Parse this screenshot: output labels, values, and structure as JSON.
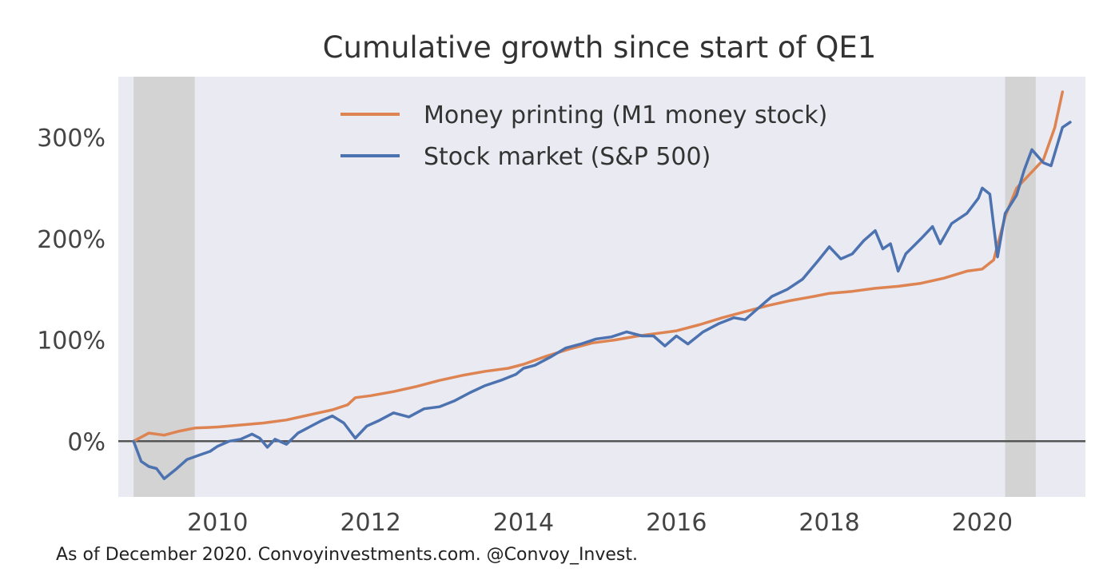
{
  "chart_data": {
    "type": "line",
    "title": "Cumulative growth since start of QE1",
    "xlabel": "",
    "ylabel": "",
    "xlim": [
      2008.7,
      2021.35
    ],
    "ylim": [
      -55,
      360
    ],
    "x_ticks": [
      2010,
      2012,
      2014,
      2016,
      2018,
      2020
    ],
    "x_tick_labels": [
      "2010",
      "2012",
      "2014",
      "2016",
      "2018",
      "2020"
    ],
    "y_ticks": [
      0,
      100,
      200,
      300
    ],
    "y_tick_labels": [
      "0%",
      "100%",
      "200%",
      "300%"
    ],
    "shaded_periods": [
      [
        2008.9,
        2009.7
      ],
      [
        2020.3,
        2020.7
      ]
    ],
    "zero_line": 0,
    "legend_position": "top-center",
    "series": [
      {
        "name": "Money printing (M1 money stock)",
        "color": "#DD8452",
        "points": [
          [
            2008.9,
            0
          ],
          [
            2009.0,
            4
          ],
          [
            2009.1,
            8
          ],
          [
            2009.3,
            6
          ],
          [
            2009.5,
            10
          ],
          [
            2009.7,
            13
          ],
          [
            2010.0,
            14
          ],
          [
            2010.3,
            16
          ],
          [
            2010.6,
            18
          ],
          [
            2010.9,
            21
          ],
          [
            2011.2,
            26
          ],
          [
            2011.5,
            31
          ],
          [
            2011.7,
            36
          ],
          [
            2011.8,
            43
          ],
          [
            2012.0,
            45
          ],
          [
            2012.3,
            49
          ],
          [
            2012.6,
            54
          ],
          [
            2012.9,
            60
          ],
          [
            2013.2,
            65
          ],
          [
            2013.5,
            69
          ],
          [
            2013.8,
            72
          ],
          [
            2014.0,
            76
          ],
          [
            2014.3,
            84
          ],
          [
            2014.6,
            91
          ],
          [
            2014.9,
            97
          ],
          [
            2015.2,
            100
          ],
          [
            2015.5,
            104
          ],
          [
            2015.8,
            107
          ],
          [
            2016.0,
            109
          ],
          [
            2016.3,
            115
          ],
          [
            2016.6,
            122
          ],
          [
            2016.9,
            128
          ],
          [
            2017.2,
            134
          ],
          [
            2017.5,
            139
          ],
          [
            2017.8,
            143
          ],
          [
            2018.0,
            146
          ],
          [
            2018.3,
            148
          ],
          [
            2018.6,
            151
          ],
          [
            2018.9,
            153
          ],
          [
            2019.2,
            156
          ],
          [
            2019.5,
            161
          ],
          [
            2019.8,
            168
          ],
          [
            2020.0,
            170
          ],
          [
            2020.15,
            179
          ],
          [
            2020.3,
            222
          ],
          [
            2020.45,
            250
          ],
          [
            2020.6,
            262
          ],
          [
            2020.8,
            278
          ],
          [
            2020.95,
            310
          ],
          [
            2021.05,
            345
          ]
        ]
      },
      {
        "name": "Stock market (S&P 500)",
        "color": "#4C72B0",
        "points": [
          [
            2008.9,
            0
          ],
          [
            2009.0,
            -20
          ],
          [
            2009.1,
            -25
          ],
          [
            2009.2,
            -27
          ],
          [
            2009.3,
            -37
          ],
          [
            2009.45,
            -28
          ],
          [
            2009.6,
            -18
          ],
          [
            2009.75,
            -14
          ],
          [
            2009.9,
            -10
          ],
          [
            2010.0,
            -5
          ],
          [
            2010.15,
            0
          ],
          [
            2010.3,
            2
          ],
          [
            2010.45,
            7
          ],
          [
            2010.55,
            3
          ],
          [
            2010.65,
            -6
          ],
          [
            2010.75,
            2
          ],
          [
            2010.9,
            -3
          ],
          [
            2011.05,
            8
          ],
          [
            2011.2,
            14
          ],
          [
            2011.35,
            20
          ],
          [
            2011.5,
            25
          ],
          [
            2011.65,
            18
          ],
          [
            2011.8,
            3
          ],
          [
            2011.95,
            15
          ],
          [
            2012.1,
            20
          ],
          [
            2012.3,
            28
          ],
          [
            2012.5,
            24
          ],
          [
            2012.7,
            32
          ],
          [
            2012.9,
            34
          ],
          [
            2013.1,
            40
          ],
          [
            2013.3,
            48
          ],
          [
            2013.5,
            55
          ],
          [
            2013.7,
            60
          ],
          [
            2013.9,
            66
          ],
          [
            2014.0,
            72
          ],
          [
            2014.15,
            75
          ],
          [
            2014.35,
            83
          ],
          [
            2014.55,
            92
          ],
          [
            2014.75,
            96
          ],
          [
            2014.95,
            101
          ],
          [
            2015.15,
            103
          ],
          [
            2015.35,
            108
          ],
          [
            2015.55,
            104
          ],
          [
            2015.7,
            104
          ],
          [
            2015.85,
            94
          ],
          [
            2016.0,
            104
          ],
          [
            2016.15,
            96
          ],
          [
            2016.35,
            108
          ],
          [
            2016.55,
            116
          ],
          [
            2016.75,
            122
          ],
          [
            2016.9,
            120
          ],
          [
            2017.05,
            130
          ],
          [
            2017.25,
            143
          ],
          [
            2017.45,
            150
          ],
          [
            2017.65,
            160
          ],
          [
            2017.85,
            178
          ],
          [
            2018.0,
            192
          ],
          [
            2018.15,
            180
          ],
          [
            2018.3,
            185
          ],
          [
            2018.45,
            198
          ],
          [
            2018.6,
            208
          ],
          [
            2018.7,
            190
          ],
          [
            2018.8,
            195
          ],
          [
            2018.9,
            168
          ],
          [
            2019.0,
            185
          ],
          [
            2019.2,
            200
          ],
          [
            2019.35,
            212
          ],
          [
            2019.45,
            195
          ],
          [
            2019.6,
            215
          ],
          [
            2019.8,
            225
          ],
          [
            2019.95,
            240
          ],
          [
            2020.0,
            250
          ],
          [
            2020.1,
            244
          ],
          [
            2020.2,
            182
          ],
          [
            2020.3,
            225
          ],
          [
            2020.45,
            243
          ],
          [
            2020.55,
            268
          ],
          [
            2020.65,
            288
          ],
          [
            2020.8,
            275
          ],
          [
            2020.9,
            272
          ],
          [
            2021.05,
            310
          ],
          [
            2021.15,
            315
          ]
        ]
      }
    ],
    "caption": "As of December 2020. Convoyinvestments.com. @Convoy_Invest."
  },
  "colors": {
    "plot_background": "#EAEAF2",
    "shade": "#D3D3D3",
    "zero_line": "#555555"
  }
}
